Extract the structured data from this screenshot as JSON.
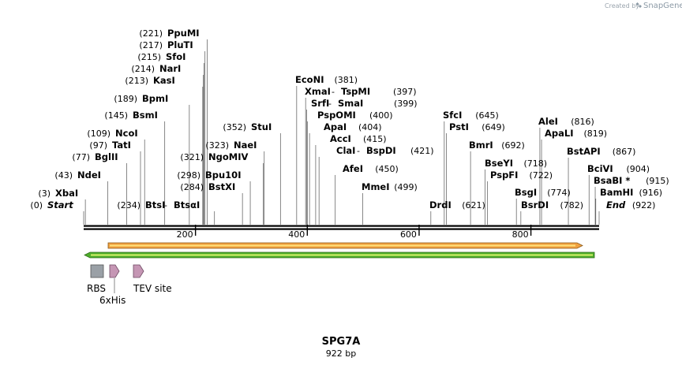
{
  "app": {
    "credit_prefix": "Created by",
    "brand_name": "SnapGene"
  },
  "plasmid": {
    "name": "SPG7A",
    "length_label": "922 bp",
    "length": 922
  },
  "axis": {
    "ticks": [
      200,
      400,
      600,
      800
    ]
  },
  "sites": [
    {
      "pos_label": "(0)",
      "name": "Start",
      "italic": true,
      "pos": 0
    },
    {
      "pos_label": "(3)",
      "name": "XbaI",
      "pos": 3
    },
    {
      "pos_label": "(43)",
      "name": "NdeI",
      "pos": 43
    },
    {
      "pos_label": "(77)",
      "name": "BglII",
      "pos": 77
    },
    {
      "pos_label": "(97)",
      "name": "TatI",
      "pos": 97
    },
    {
      "pos_label": "(109)",
      "name": "NcoI",
      "pos": 109
    },
    {
      "pos_label": "(145)",
      "name": "BsmI",
      "pos": 145
    },
    {
      "pos_label": "(189)",
      "name": "BpmI",
      "pos": 189
    },
    {
      "pos_label": "(213)",
      "name": "KasI",
      "pos": 213
    },
    {
      "pos_label": "(214)",
      "name": "NarI",
      "pos": 214
    },
    {
      "pos_label": "(215)",
      "name": "SfoI",
      "pos": 215
    },
    {
      "pos_label": "(217)",
      "name": "PluTI",
      "pos": 217
    },
    {
      "pos_label": "(221)",
      "name": "PpuMI",
      "pos": 221
    },
    {
      "pos_label": "(234)",
      "name": "BtsI",
      "name2": "BtsαI",
      "pos": 234
    },
    {
      "pos_label": "(284)",
      "name": "BstXI",
      "pos": 284
    },
    {
      "pos_label": "(298)",
      "name": "Bpu10I",
      "pos": 298
    },
    {
      "pos_label": "(321)",
      "name": "NgoMIV",
      "pos": 321
    },
    {
      "pos_label": "(323)",
      "name": "NaeI",
      "pos": 323
    },
    {
      "pos_label": "(352)",
      "name": "StuI",
      "pos": 352
    },
    {
      "pos_label": "(381)",
      "name": "EcoNI",
      "pos": 381
    },
    {
      "pos_label": "(397)",
      "name": "XmaI",
      "name2": "TspMI",
      "pos": 397
    },
    {
      "pos_label": "(399)",
      "name": "SrfI",
      "name2": "SmaI",
      "pos": 399
    },
    {
      "pos_label": "(400)",
      "name": "PspOMI",
      "pos": 400
    },
    {
      "pos_label": "(404)",
      "name": "ApaI",
      "pos": 404
    },
    {
      "pos_label": "(415)",
      "name": "AccI",
      "pos": 415
    },
    {
      "pos_label": "(421)",
      "name": "ClaI",
      "name2": "BspDI",
      "pos": 421
    },
    {
      "pos_label": "(450)",
      "name": "AfeI",
      "pos": 450
    },
    {
      "pos_label": "(499)",
      "name": "MmeI",
      "pos": 499
    },
    {
      "pos_label": "(621)",
      "name": "DrdI",
      "pos": 621
    },
    {
      "pos_label": "(645)",
      "name": "SfcI",
      "pos": 645
    },
    {
      "pos_label": "(649)",
      "name": "PstI",
      "pos": 649
    },
    {
      "pos_label": "(692)",
      "name": "BmrI",
      "pos": 692
    },
    {
      "pos_label": "(718)",
      "name": "BseYI",
      "pos": 718
    },
    {
      "pos_label": "(722)",
      "name": "PspFI",
      "pos": 722
    },
    {
      "pos_label": "(774)",
      "name": "BsgI",
      "pos": 774
    },
    {
      "pos_label": "(782)",
      "name": "BsrDI",
      "pos": 782
    },
    {
      "pos_label": "(816)",
      "name": "AleI",
      "pos": 816
    },
    {
      "pos_label": "(819)",
      "name": "ApaLI",
      "pos": 819
    },
    {
      "pos_label": "(867)",
      "name": "BstAPI",
      "pos": 867
    },
    {
      "pos_label": "(904)",
      "name": "BciVI",
      "pos": 904
    },
    {
      "pos_label": "(915)",
      "name": "BsaBI *",
      "pos": 915
    },
    {
      "pos_label": "(916)",
      "name": "BamHI",
      "pos": 916
    },
    {
      "pos_label": "(922)",
      "name": "End",
      "italic": true,
      "pos": 922
    }
  ],
  "features": [
    {
      "label": "RBS",
      "type": "rbs"
    },
    {
      "label": "6xHis",
      "type": "tag"
    },
    {
      "label": "TEV site",
      "type": "site"
    }
  ],
  "colors": {
    "backbone": "#000000",
    "orf_fill": "#f0a040",
    "orf_stroke": "#8a5a1a",
    "orf_core": "#ffe27a",
    "reverse_fill": "#4fae2b",
    "reverse_core": "#d8f26a",
    "rbs_fill": "#9aa0a6",
    "tag_fill": "#c596b4"
  }
}
